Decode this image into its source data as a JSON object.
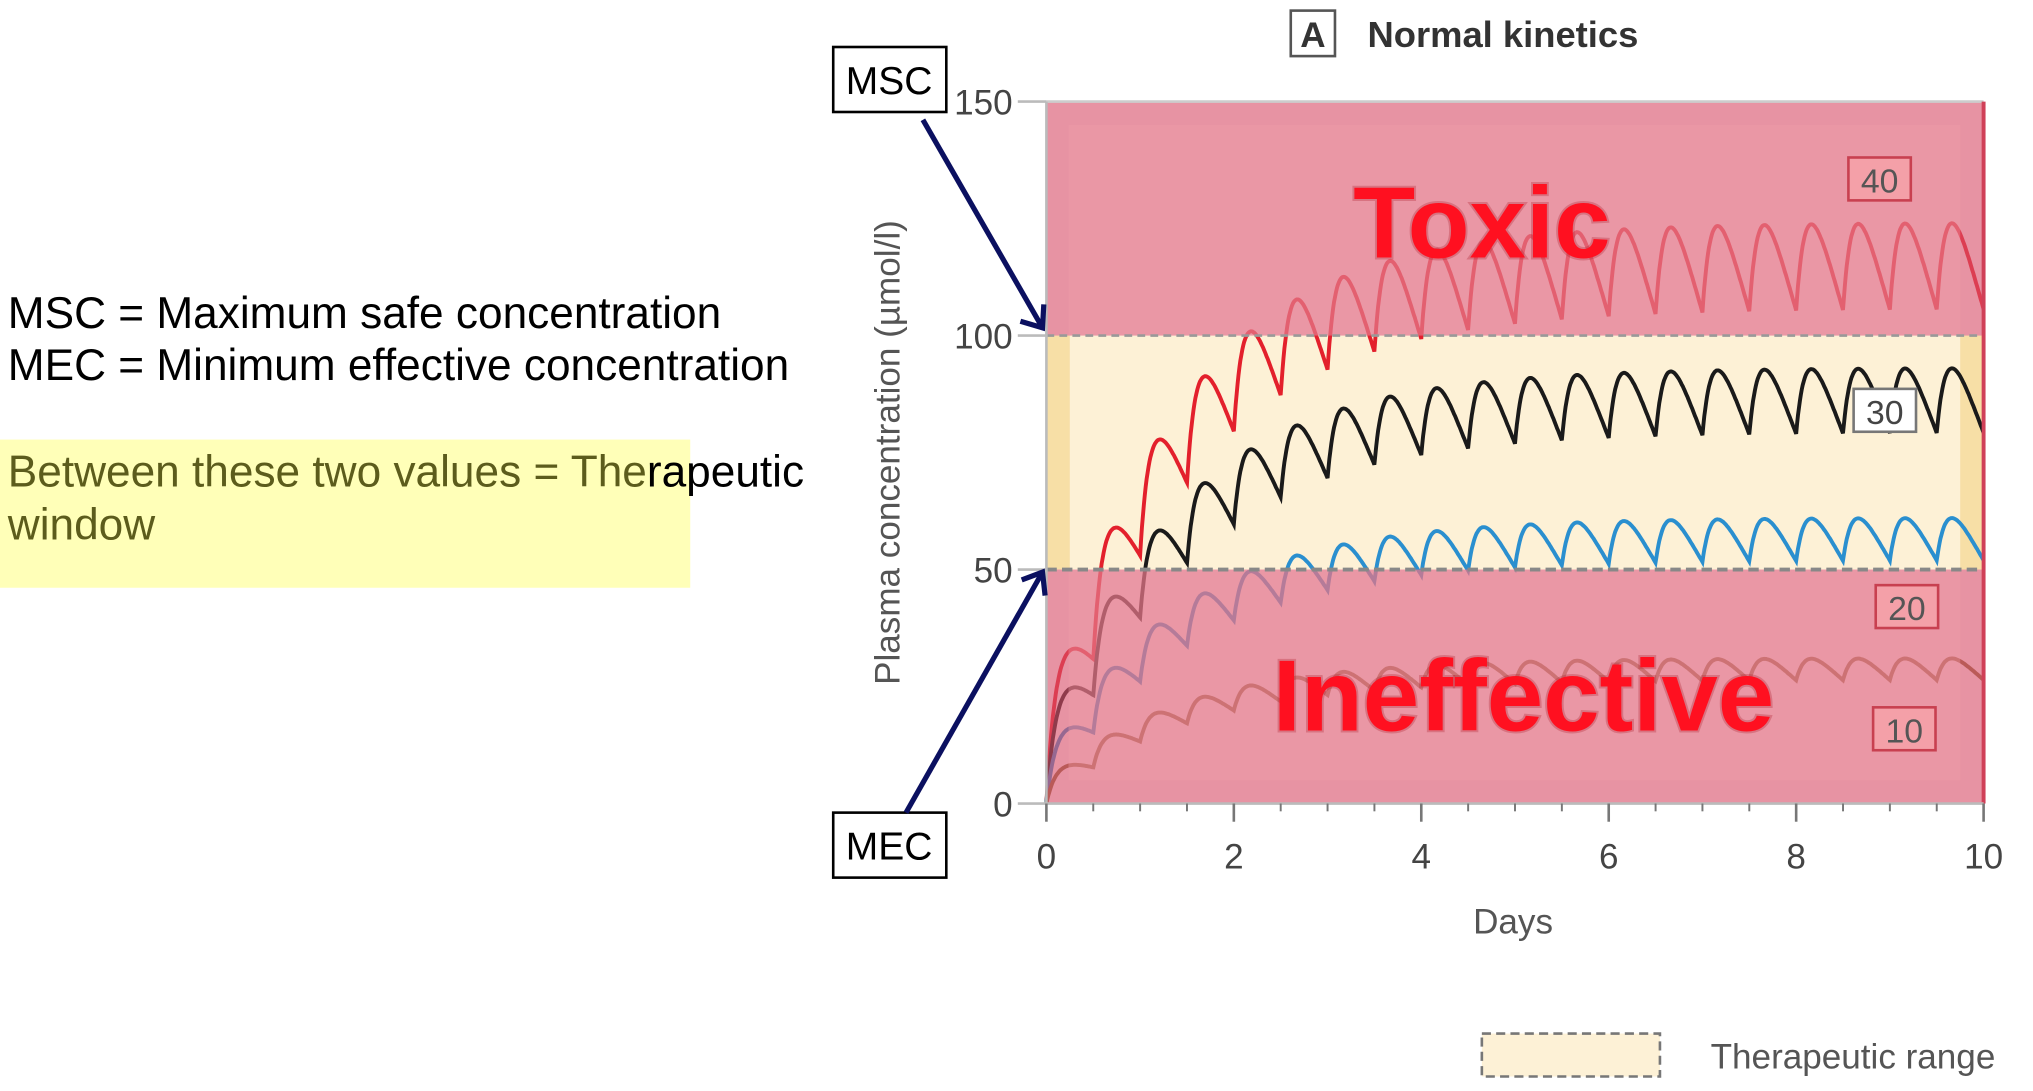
{
  "notes": {
    "msc_line": "MSC = Maximum safe concentration",
    "mec_line": "MEC = Minimum effective concentration",
    "highlight_part": "Between these two values = The",
    "rest_part": "rapeutic",
    "line2": "window",
    "highlight_color": "#ffffb8"
  },
  "callouts": {
    "msc": "MSC",
    "mec": "MEC",
    "arrow_color": "#0b1060"
  },
  "chart_data": {
    "type": "line",
    "panel_letter": "A",
    "title": "Normal kinetics",
    "xlabel": "Days",
    "ylabel": "Plasma concentration (µmol/l)",
    "xlim": [
      0,
      10
    ],
    "ylim": [
      0,
      150
    ],
    "xticks": [
      "0",
      "2",
      "4",
      "6",
      "8",
      "10"
    ],
    "yticks": [
      "0",
      "50",
      "100",
      "150"
    ],
    "dose_interval_days": 0.5,
    "regions": [
      {
        "label": "Toxic",
        "from": 100,
        "to": 150,
        "color": "#e67a8a"
      },
      {
        "label": "Ineffective",
        "from": 0,
        "to": 50,
        "color": "#e67a8a"
      }
    ],
    "therapeutic_range": [
      50,
      100
    ],
    "legend": {
      "label": "Therapeutic range",
      "color": "#fdf1d6",
      "placement": "bottom-right"
    },
    "series": [
      {
        "name": "40",
        "steady_peak": 124,
        "steady_trough": 100,
        "color": "#e3202c"
      },
      {
        "name": "30",
        "steady_peak": 93,
        "steady_trough": 74,
        "color": "#1a1a1a"
      },
      {
        "name": "20",
        "steady_peak": 61,
        "steady_trough": 50,
        "color": "#2a8fcf"
      },
      {
        "name": "10",
        "steady_peak": 31,
        "steady_trough": 25,
        "color": "#8a6a3a"
      }
    ]
  }
}
